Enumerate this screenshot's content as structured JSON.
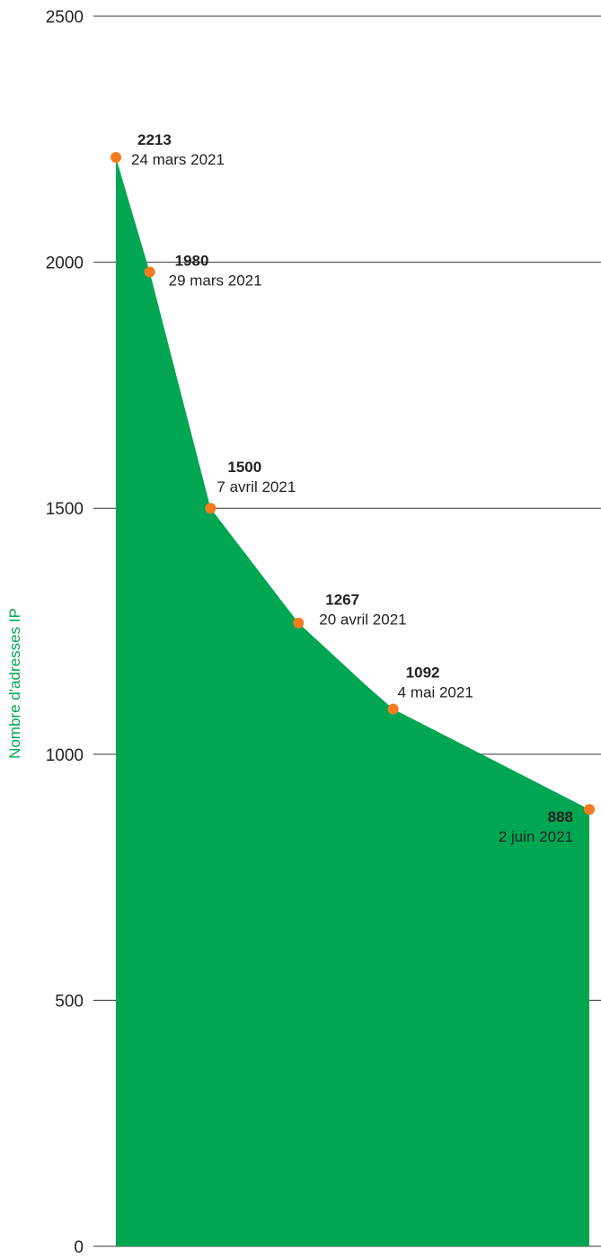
{
  "chart_data": {
    "type": "area",
    "ylabel": "Nombre d'adresses IP",
    "xlabel": "",
    "ylim": [
      0,
      2500
    ],
    "yticks": [
      "0",
      "500",
      "1000",
      "1500",
      "2000",
      "2500"
    ],
    "grid": true,
    "x": [
      "2021-03-24",
      "2021-03-29",
      "2021-04-07",
      "2021-04-20",
      "2021-05-04",
      "2021-06-02"
    ],
    "values": [
      2213,
      1980,
      1500,
      1267,
      1092,
      888
    ],
    "unlabeled_vertex": {
      "x": "2021-04-30",
      "value": 1140
    },
    "point_labels": [
      {
        "value": "2213",
        "date": "24 mars 2021"
      },
      {
        "value": "1980",
        "date": "29 mars 2021"
      },
      {
        "value": "1500",
        "date": "7 avril 2021"
      },
      {
        "value": "1267",
        "date": "20 avril 2021"
      },
      {
        "value": "1092",
        "date": "4 mai 2021"
      },
      {
        "value": "888",
        "date": "2 juin 2021"
      }
    ],
    "colors": {
      "area": "#00a651",
      "marker": "#f47b20",
      "ylabel": "#00a651"
    }
  }
}
